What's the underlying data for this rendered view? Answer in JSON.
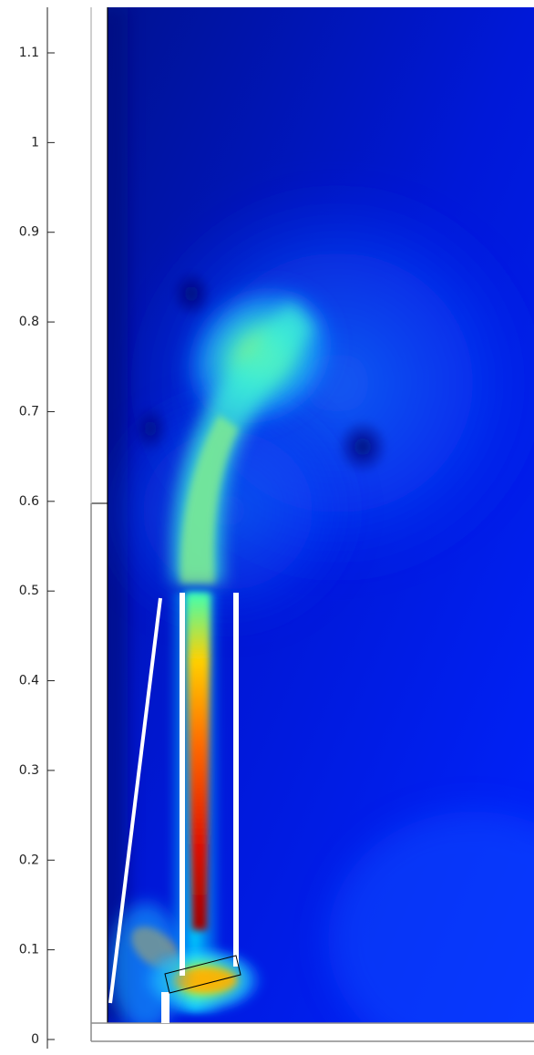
{
  "chart_data": {
    "type": "heatmap",
    "title": "",
    "xlabel": "",
    "ylabel": "",
    "ylim": [
      0,
      1.1
    ],
    "yticks": [
      "0",
      "0.1",
      "0.2",
      "0.3",
      "0.4",
      "0.5",
      "0.6",
      "0.7",
      "0.8",
      "0.9",
      "1",
      "1.1"
    ],
    "colormap": [
      "#000080",
      "#0000ff",
      "#00ffff",
      "#ffff00",
      "#ff0000",
      "#800000"
    ],
    "features": [
      {
        "name": "hot-jet",
        "x": 0.103,
        "y": 0.25,
        "level": 0.95
      },
      {
        "name": "plume-core",
        "x": 0.185,
        "y": 0.75,
        "level": 0.6
      },
      {
        "name": "vortex-core",
        "x": 0.29,
        "y": 0.66,
        "level": 0.02
      }
    ]
  }
}
